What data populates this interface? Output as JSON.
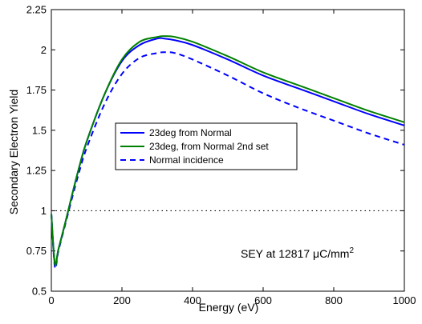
{
  "chart_data": {
    "type": "line",
    "xlabel": "Energy (eV)",
    "ylabel": "Secondary Electron Yield",
    "xlim": [
      0,
      1000
    ],
    "ylim": [
      0.5,
      2.25
    ],
    "xticks": [
      0,
      200,
      400,
      600,
      800,
      1000
    ],
    "xtick_labels": [
      "0",
      "200",
      "400",
      "600",
      "800",
      "1000"
    ],
    "yticks": [
      0.5,
      0.75,
      1.0,
      1.25,
      1.5,
      1.75,
      2.0,
      2.25
    ],
    "ytick_labels": [
      "0.5",
      "0.75",
      "1",
      "1.25",
      "1.5",
      "1.75",
      "2",
      "2.25"
    ],
    "grid": false,
    "legend_position": "center-left",
    "reference_line": {
      "y": 1.0,
      "style": "dotted",
      "color": "#000000"
    },
    "annotation": {
      "text_main": "SEY at 12817 ",
      "text_unit": "μC/mm",
      "text_sup": "2",
      "position": "lower-right"
    },
    "series": [
      {
        "name": "23deg from Normal",
        "color": "#0000ff",
        "dash": "solid",
        "x": [
          0,
          10,
          20,
          40,
          60,
          80,
          100,
          150,
          200,
          250,
          300,
          320,
          350,
          400,
          500,
          600,
          700,
          800,
          900,
          1000
        ],
        "y": [
          0.98,
          0.67,
          0.76,
          0.93,
          1.11,
          1.28,
          1.43,
          1.72,
          1.93,
          2.03,
          2.07,
          2.07,
          2.06,
          2.03,
          1.94,
          1.84,
          1.76,
          1.68,
          1.6,
          1.53
        ]
      },
      {
        "name": "23deg, from Normal 2nd set",
        "color": "#008000",
        "dash": "solid",
        "x": [
          0,
          10,
          20,
          40,
          60,
          80,
          100,
          150,
          200,
          250,
          300,
          320,
          350,
          400,
          500,
          600,
          700,
          800,
          900,
          1000
        ],
        "y": [
          0.98,
          0.67,
          0.76,
          0.93,
          1.11,
          1.28,
          1.43,
          1.72,
          1.94,
          2.05,
          2.08,
          2.085,
          2.08,
          2.05,
          1.96,
          1.86,
          1.78,
          1.7,
          1.62,
          1.55
        ]
      },
      {
        "name": "Normal incidence",
        "color": "#0000ff",
        "dash": "dashed",
        "x": [
          0,
          10,
          20,
          40,
          60,
          80,
          100,
          150,
          200,
          250,
          300,
          320,
          350,
          400,
          500,
          600,
          700,
          800,
          900,
          1000
        ],
        "y": [
          0.98,
          0.65,
          0.75,
          0.92,
          1.09,
          1.25,
          1.39,
          1.66,
          1.85,
          1.95,
          1.98,
          1.985,
          1.98,
          1.94,
          1.84,
          1.73,
          1.64,
          1.56,
          1.48,
          1.41
        ]
      }
    ]
  }
}
